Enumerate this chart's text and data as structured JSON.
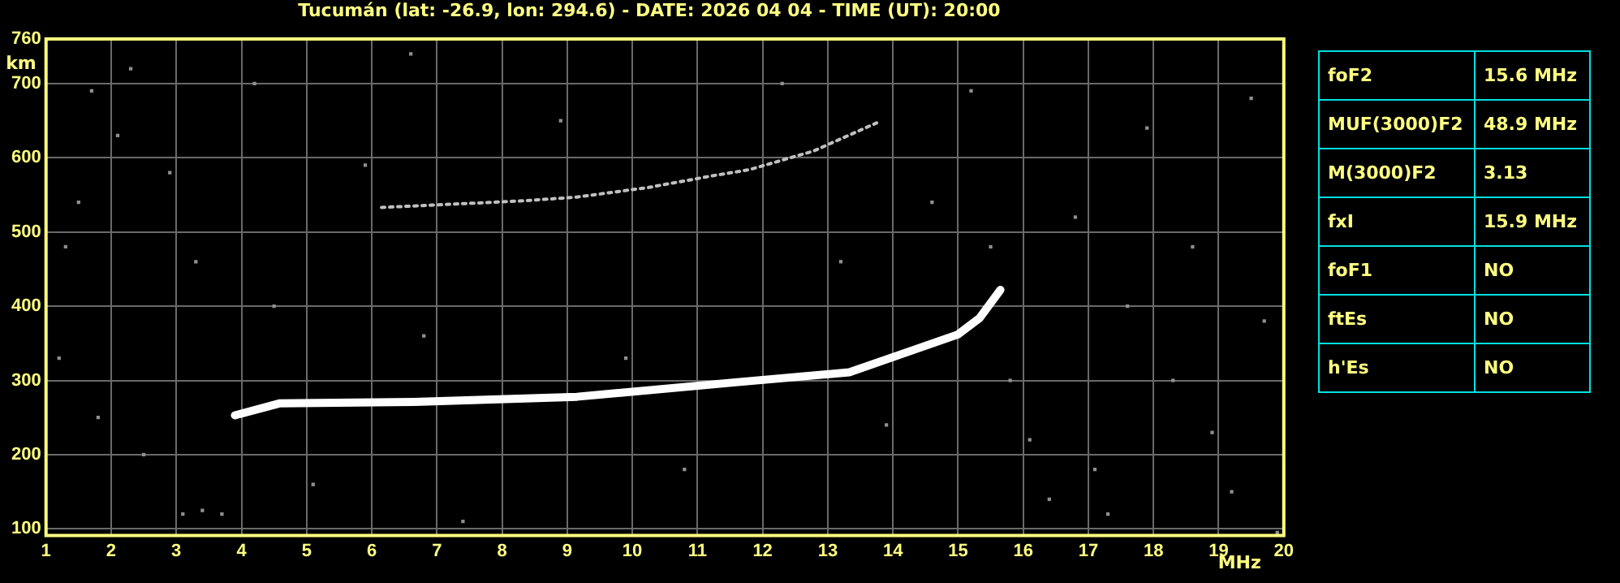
{
  "chart_data": [
    {
      "type": "scatter",
      "title": "Tucumán (lat: -26.9, lon: 294.6) - DATE: 2026 04 04 - TIME (UT): 20:00",
      "xlabel": "MHz",
      "ylabel": "km",
      "xlim": [
        1,
        20
      ],
      "xticks": [
        1,
        2,
        3,
        4,
        5,
        6,
        7,
        8,
        9,
        10,
        11,
        12,
        13,
        14,
        15,
        16,
        17,
        18,
        19,
        20
      ],
      "ylim": [
        91,
        760
      ],
      "yticks": [
        100,
        200,
        300,
        400,
        500,
        600,
        700,
        760
      ],
      "grid": true,
      "legend": false,
      "series": [
        {
          "type": "line",
          "color": "#ffffff",
          "line_style": "solid",
          "marker": "none",
          "x": [
            3.9,
            4.58,
            6.65,
            9.15,
            11.65,
            13.33,
            14.15,
            15.0,
            15.33,
            15.65
          ],
          "values": [
            253,
            269,
            271,
            278,
            298,
            311,
            336,
            362,
            384,
            422
          ]
        },
        {
          "type": "line",
          "color": "#c0c0c0",
          "line_style": "dotted",
          "marker": "none",
          "x": [
            6.15,
            8.33,
            9.15,
            10.25,
            11.25,
            11.8,
            12.78,
            13.75
          ],
          "values": [
            533,
            542,
            547,
            560,
            576,
            584,
            609,
            647
          ]
        },
        {
          "type": "scatter",
          "color": "#909090",
          "marker": "square",
          "x": [
            1.3,
            1.5,
            1.7,
            2.1,
            2.3,
            1.2,
            1.8,
            2.5,
            3.1,
            3.4,
            3.7,
            2.9,
            3.3,
            4.2,
            4.5,
            5.1,
            5.9,
            6.6,
            6.8,
            7.4,
            8.9,
            9.9,
            10.8,
            12.3,
            13.2,
            13.9,
            14.6,
            15.2,
            15.5,
            15.8,
            16.1,
            16.4,
            16.8,
            17.1,
            17.3,
            17.6,
            17.9,
            18.3,
            18.6,
            18.9,
            19.2,
            19.5,
            19.7,
            19.9
          ],
          "values": [
            480,
            540,
            690,
            630,
            720,
            330,
            250,
            200,
            120,
            125,
            120,
            580,
            460,
            700,
            400,
            160,
            590,
            740,
            360,
            110,
            650,
            330,
            180,
            700,
            460,
            240,
            540,
            690,
            480,
            300,
            220,
            140,
            520,
            180,
            120,
            400,
            640,
            300,
            480,
            230,
            150,
            680,
            380,
            95
          ]
        }
      ]
    },
    {
      "type": "other",
      "annotations": [
        "foF2",
        "15.6 MHz",
        "MUF(3000)F2",
        "48.9 MHz",
        "M(3000)F2",
        "3.13",
        "fxI",
        "15.9 MHz",
        "foF1",
        "NO",
        "ftEs",
        "NO",
        "h'Es",
        "NO"
      ]
    }
  ]
}
